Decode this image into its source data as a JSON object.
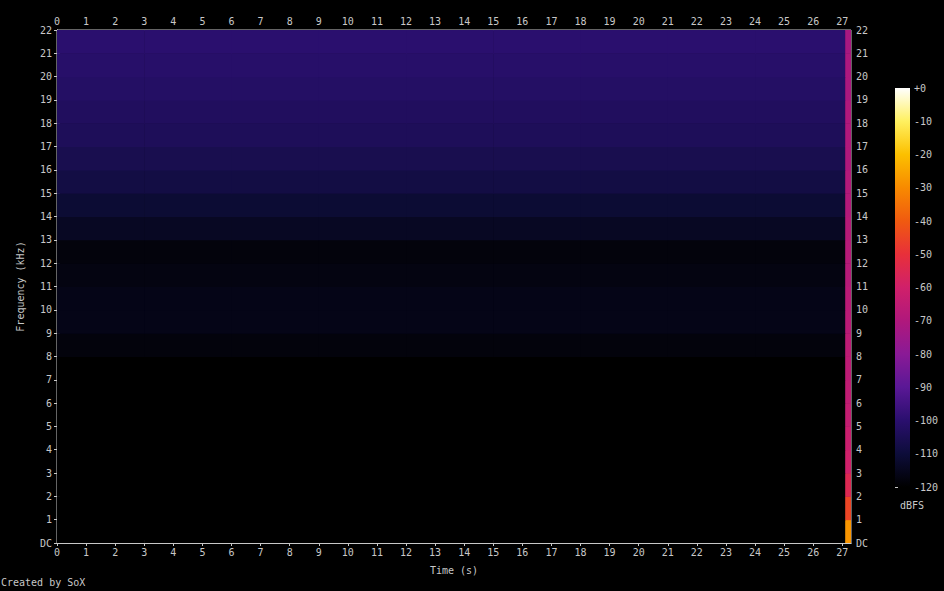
{
  "chart_data": {
    "type": "heatmap",
    "x_label": "Time (s)",
    "y_label": "Frequency (kHz)",
    "footnote": "Created by SoX",
    "grid": false,
    "xlim": [
      0,
      27.3
    ],
    "xticks": [
      0,
      1,
      2,
      3,
      4,
      5,
      6,
      7,
      8,
      9,
      10,
      11,
      12,
      13,
      14,
      15,
      16,
      17,
      18,
      19,
      20,
      21,
      22,
      23,
      24,
      25,
      26,
      27
    ],
    "ylim": [
      0,
      22
    ],
    "yticks": [
      {
        "value": 0,
        "label": "DC"
      },
      1,
      2,
      3,
      4,
      5,
      6,
      7,
      8,
      9,
      10,
      11,
      12,
      13,
      14,
      15,
      16,
      17,
      18,
      19,
      20,
      21,
      22
    ],
    "time_edges": [
      0,
      3,
      6,
      9,
      12,
      15,
      18,
      21,
      24,
      27.1,
      27.3
    ],
    "freq_edges": [
      0,
      1,
      2,
      3,
      4,
      5,
      6,
      7,
      8,
      9,
      10,
      11,
      12,
      13,
      14,
      15,
      16,
      17,
      18,
      19,
      20,
      21,
      22
    ],
    "cells": [
      [
        -120,
        -120,
        -120,
        -120,
        -120,
        -120,
        -120,
        -120,
        -120,
        -28
      ],
      [
        -120,
        -120,
        -120,
        -120,
        -120,
        -120,
        -120,
        -120,
        -120,
        -45
      ],
      [
        -120,
        -120,
        -120,
        -120,
        -120,
        -120,
        -120,
        -120,
        -120,
        -55
      ],
      [
        -120,
        -120,
        -120,
        -120,
        -120,
        -120,
        -120,
        -120,
        -120,
        -60
      ],
      [
        -120,
        -120,
        -120,
        -120,
        -120,
        -120,
        -120,
        -120,
        -120,
        -62
      ],
      [
        -120,
        -120,
        -120,
        -120,
        -120,
        -120,
        -120,
        -120,
        -120,
        -64
      ],
      [
        -120,
        -120,
        -120,
        -120,
        -120,
        -120,
        -120,
        -120,
        -120,
        -65
      ],
      [
        -120,
        -120,
        -120,
        -120,
        -120,
        -120,
        -120,
        -120,
        -120,
        -66
      ],
      [
        -118,
        -118,
        -118,
        -118,
        -118,
        -118,
        -118,
        -118,
        -118,
        -66
      ],
      [
        -116,
        -116,
        -116,
        -116,
        -116,
        -116,
        -116,
        -116,
        -116,
        -67
      ],
      [
        -116,
        -116,
        -116,
        -116,
        -116,
        -116,
        -116,
        -116,
        -116,
        -67
      ],
      [
        -117,
        -117,
        -117,
        -117,
        -117,
        -117,
        -117,
        -117,
        -117,
        -68
      ],
      [
        -118,
        -118,
        -118,
        -118,
        -118,
        -118,
        -118,
        -118,
        -118,
        -68
      ],
      [
        -114,
        -114,
        -114,
        -114,
        -114,
        -114,
        -114,
        -114,
        -114,
        -68
      ],
      [
        -111,
        -111,
        -111,
        -111,
        -111,
        -111,
        -111,
        -111,
        -111,
        -69
      ],
      [
        -108,
        -108,
        -108,
        -108,
        -108,
        -108,
        -108,
        -108,
        -108,
        -69
      ],
      [
        -106,
        -106,
        -106,
        -106,
        -106,
        -106,
        -106,
        -106,
        -106,
        -70
      ],
      [
        -104,
        -104,
        -104,
        -104,
        -104,
        -104,
        -104,
        -104,
        -104,
        -70
      ],
      [
        -103,
        -103,
        -103,
        -103,
        -103,
        -103,
        -103,
        -103,
        -103,
        -70
      ],
      [
        -102,
        -102,
        -102,
        -102,
        -102,
        -102,
        -102,
        -102,
        -102,
        -71
      ],
      [
        -101,
        -101,
        -101,
        -101,
        -101,
        -101,
        -101,
        -101,
        -101,
        -71
      ],
      [
        -100,
        -100,
        -100,
        -100,
        -100,
        -100,
        -100,
        -100,
        -100,
        -72
      ]
    ],
    "colorbar_range": [
      -120,
      0
    ],
    "colorbar_ticks": [
      {
        "value": 0,
        "label": "+0"
      },
      -10,
      -20,
      -30,
      -40,
      -50,
      -60,
      -70,
      -80,
      -90,
      -100,
      -110,
      -120
    ],
    "colorbar_label": "dBFS"
  }
}
